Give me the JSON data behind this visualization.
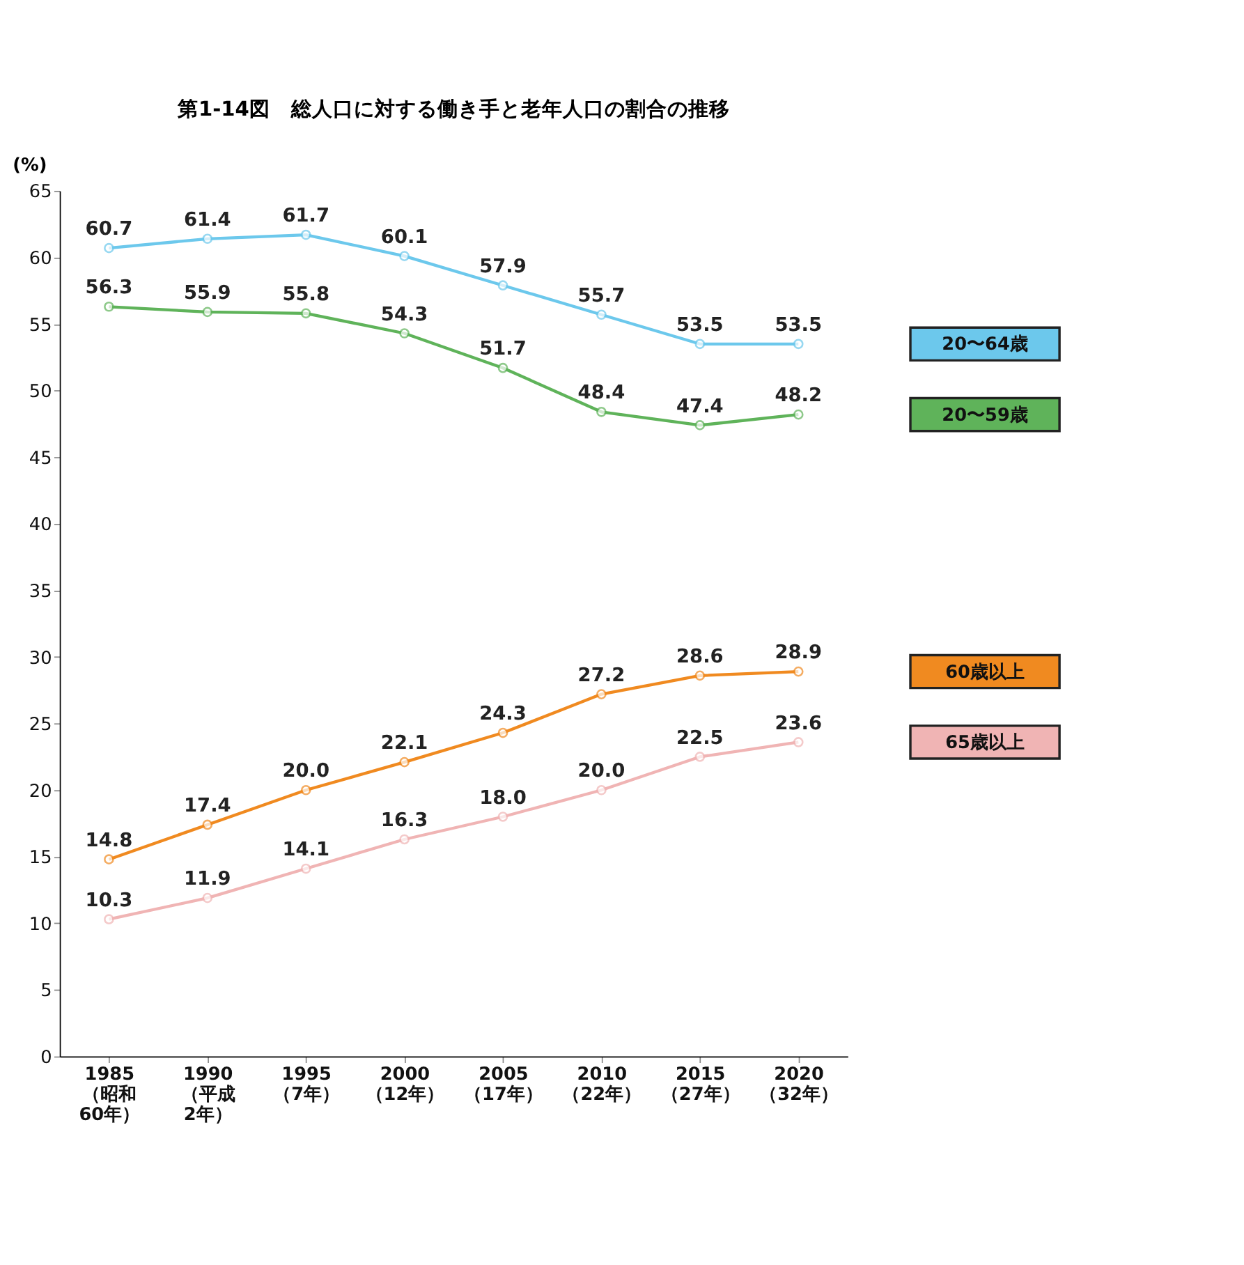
{
  "chart_data": {
    "type": "line",
    "title": "第1-14図　総人口に対する働き手と老年人口の割合の推移",
    "ylabel": "(%)",
    "categories": [
      "1985\n（昭和\n60年）",
      "1990\n（平成\n2年）",
      "1995\n（7年）",
      "2000\n（12年）",
      "2005\n（17年）",
      "2010\n（22年）",
      "2015\n（27年）",
      "2020\n（32年）"
    ],
    "series": [
      {
        "name": "20〜64歳",
        "color": "#6cc8ec",
        "values": [
          60.7,
          61.4,
          61.7,
          60.1,
          57.9,
          55.7,
          53.5,
          53.5
        ],
        "value_labels": [
          "60.7",
          "61.4",
          "61.7",
          "60.1",
          "57.9",
          "55.7",
          "53.5",
          "53.5"
        ]
      },
      {
        "name": "20〜59歳",
        "color": "#5fb35a",
        "values": [
          56.3,
          55.9,
          55.8,
          54.3,
          51.7,
          48.4,
          47.4,
          48.2
        ],
        "value_labels": [
          "56.3",
          "55.9",
          "55.8",
          "54.3",
          "51.7",
          "48.4",
          "47.4",
          "48.2"
        ]
      },
      {
        "name": "60歳以上",
        "color": "#f08a20",
        "values": [
          14.8,
          17.4,
          20.0,
          22.1,
          24.3,
          27.2,
          28.6,
          28.9
        ],
        "value_labels": [
          "14.8",
          "17.4",
          "20.0",
          "22.1",
          "24.3",
          "27.2",
          "28.6",
          "28.9"
        ]
      },
      {
        "name": "65歳以上",
        "color": "#f0b4b4",
        "values": [
          10.3,
          11.9,
          14.1,
          16.3,
          18.0,
          20.0,
          22.5,
          23.6
        ],
        "value_labels": [
          "10.3",
          "11.9",
          "14.1",
          "16.3",
          "18.0",
          "20.0",
          "22.5",
          "23.6"
        ]
      }
    ],
    "ylim": [
      0,
      65
    ],
    "yticks": [
      0,
      5,
      10,
      15,
      20,
      25,
      30,
      35,
      40,
      45,
      50,
      55,
      60,
      65
    ],
    "marker": "circle",
    "line_style": "solid",
    "grid": false,
    "legend": "right"
  }
}
